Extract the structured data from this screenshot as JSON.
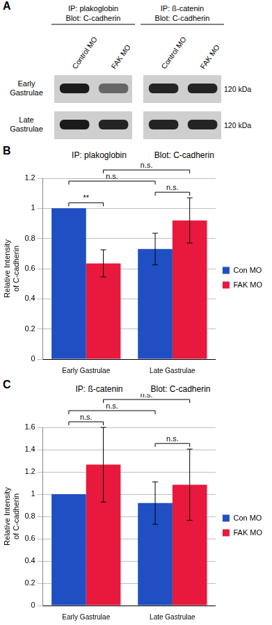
{
  "panel_a": {
    "panel": "A",
    "blots": [
      {
        "ip": "IP: plakoglobin",
        "blot": "Blot: C-cadherin",
        "lanes": [
          "Control MO",
          "FAK MO"
        ]
      },
      {
        "ip": "IP: ß-catenin",
        "blot": "Blot: C-cadherin",
        "lanes": [
          "Control MO",
          "FAK MO"
        ]
      }
    ],
    "rows": [
      "Early Gastrulae",
      "Late Gastrulae"
    ],
    "size_label": "120 kDa"
  },
  "chart_data": [
    {
      "type": "bar",
      "panel": "B",
      "title": "IP: plakoglobin",
      "subtitle": "Blot: C-cadherin",
      "y_label": [
        "Relative Intensity",
        "of C-cadherin"
      ],
      "categories": [
        "Early Gastrulae",
        "Late Gastrulae"
      ],
      "series": [
        {
          "name": "Con MO",
          "color": "#1f4fc2",
          "values": [
            1,
            0.73
          ],
          "errors": [
            0,
            0.105
          ]
        },
        {
          "name": "FAK MO",
          "color": "#e8193c",
          "values": [
            0.635,
            0.92
          ],
          "errors": [
            0.09,
            0.15
          ]
        }
      ],
      "ylim": [
        0,
        1.2
      ],
      "yticks": [
        0,
        0.2,
        0.4,
        0.6,
        0.8,
        1,
        1.2
      ],
      "grid": true,
      "legend": "right",
      "annotations": [
        {
          "text": "**",
          "bars": [
            [
              0,
              0
            ],
            [
              0,
              1
            ]
          ]
        },
        {
          "text": "n.s.",
          "bars": [
            [
              1,
              0
            ],
            [
              1,
              1
            ]
          ]
        },
        {
          "text": "n.s.",
          "bars": [
            [
              0,
              0
            ],
            [
              1,
              0
            ]
          ]
        },
        {
          "text": "n.s.",
          "bars": [
            [
              0,
              1
            ],
            [
              1,
              1
            ]
          ]
        }
      ]
    },
    {
      "type": "bar",
      "panel": "C",
      "title": "IP: ß-catenin",
      "subtitle": "Blot: C-cadherin",
      "y_label": [
        "Relative Intensity",
        "of C-cadherin"
      ],
      "categories": [
        "Early Gastrulae",
        "Late Gastrulae"
      ],
      "series": [
        {
          "name": "Con MO",
          "color": "#1f4fc2",
          "values": [
            1,
            0.92
          ],
          "errors": [
            0,
            0.19
          ]
        },
        {
          "name": "FAK MO",
          "color": "#e8193c",
          "values": [
            1.265,
            1.085
          ],
          "errors": [
            0.335,
            0.32
          ]
        }
      ],
      "ylim": [
        0,
        1.6
      ],
      "yticks": [
        0,
        0.2,
        0.4,
        0.6,
        0.8,
        1,
        1.2,
        1.4,
        1.6
      ],
      "grid": true,
      "legend": "right",
      "annotations": [
        {
          "text": "n.s.",
          "bars": [
            [
              0,
              0
            ],
            [
              0,
              1
            ]
          ]
        },
        {
          "text": "n.s.",
          "bars": [
            [
              1,
              0
            ],
            [
              1,
              1
            ]
          ]
        },
        {
          "text": "n.s.",
          "bars": [
            [
              0,
              1
            ],
            [
              1,
              1
            ]
          ]
        },
        {
          "text": "n.s.",
          "bars": [
            [
              0,
              0
            ],
            [
              1,
              0
            ]
          ]
        }
      ]
    }
  ]
}
